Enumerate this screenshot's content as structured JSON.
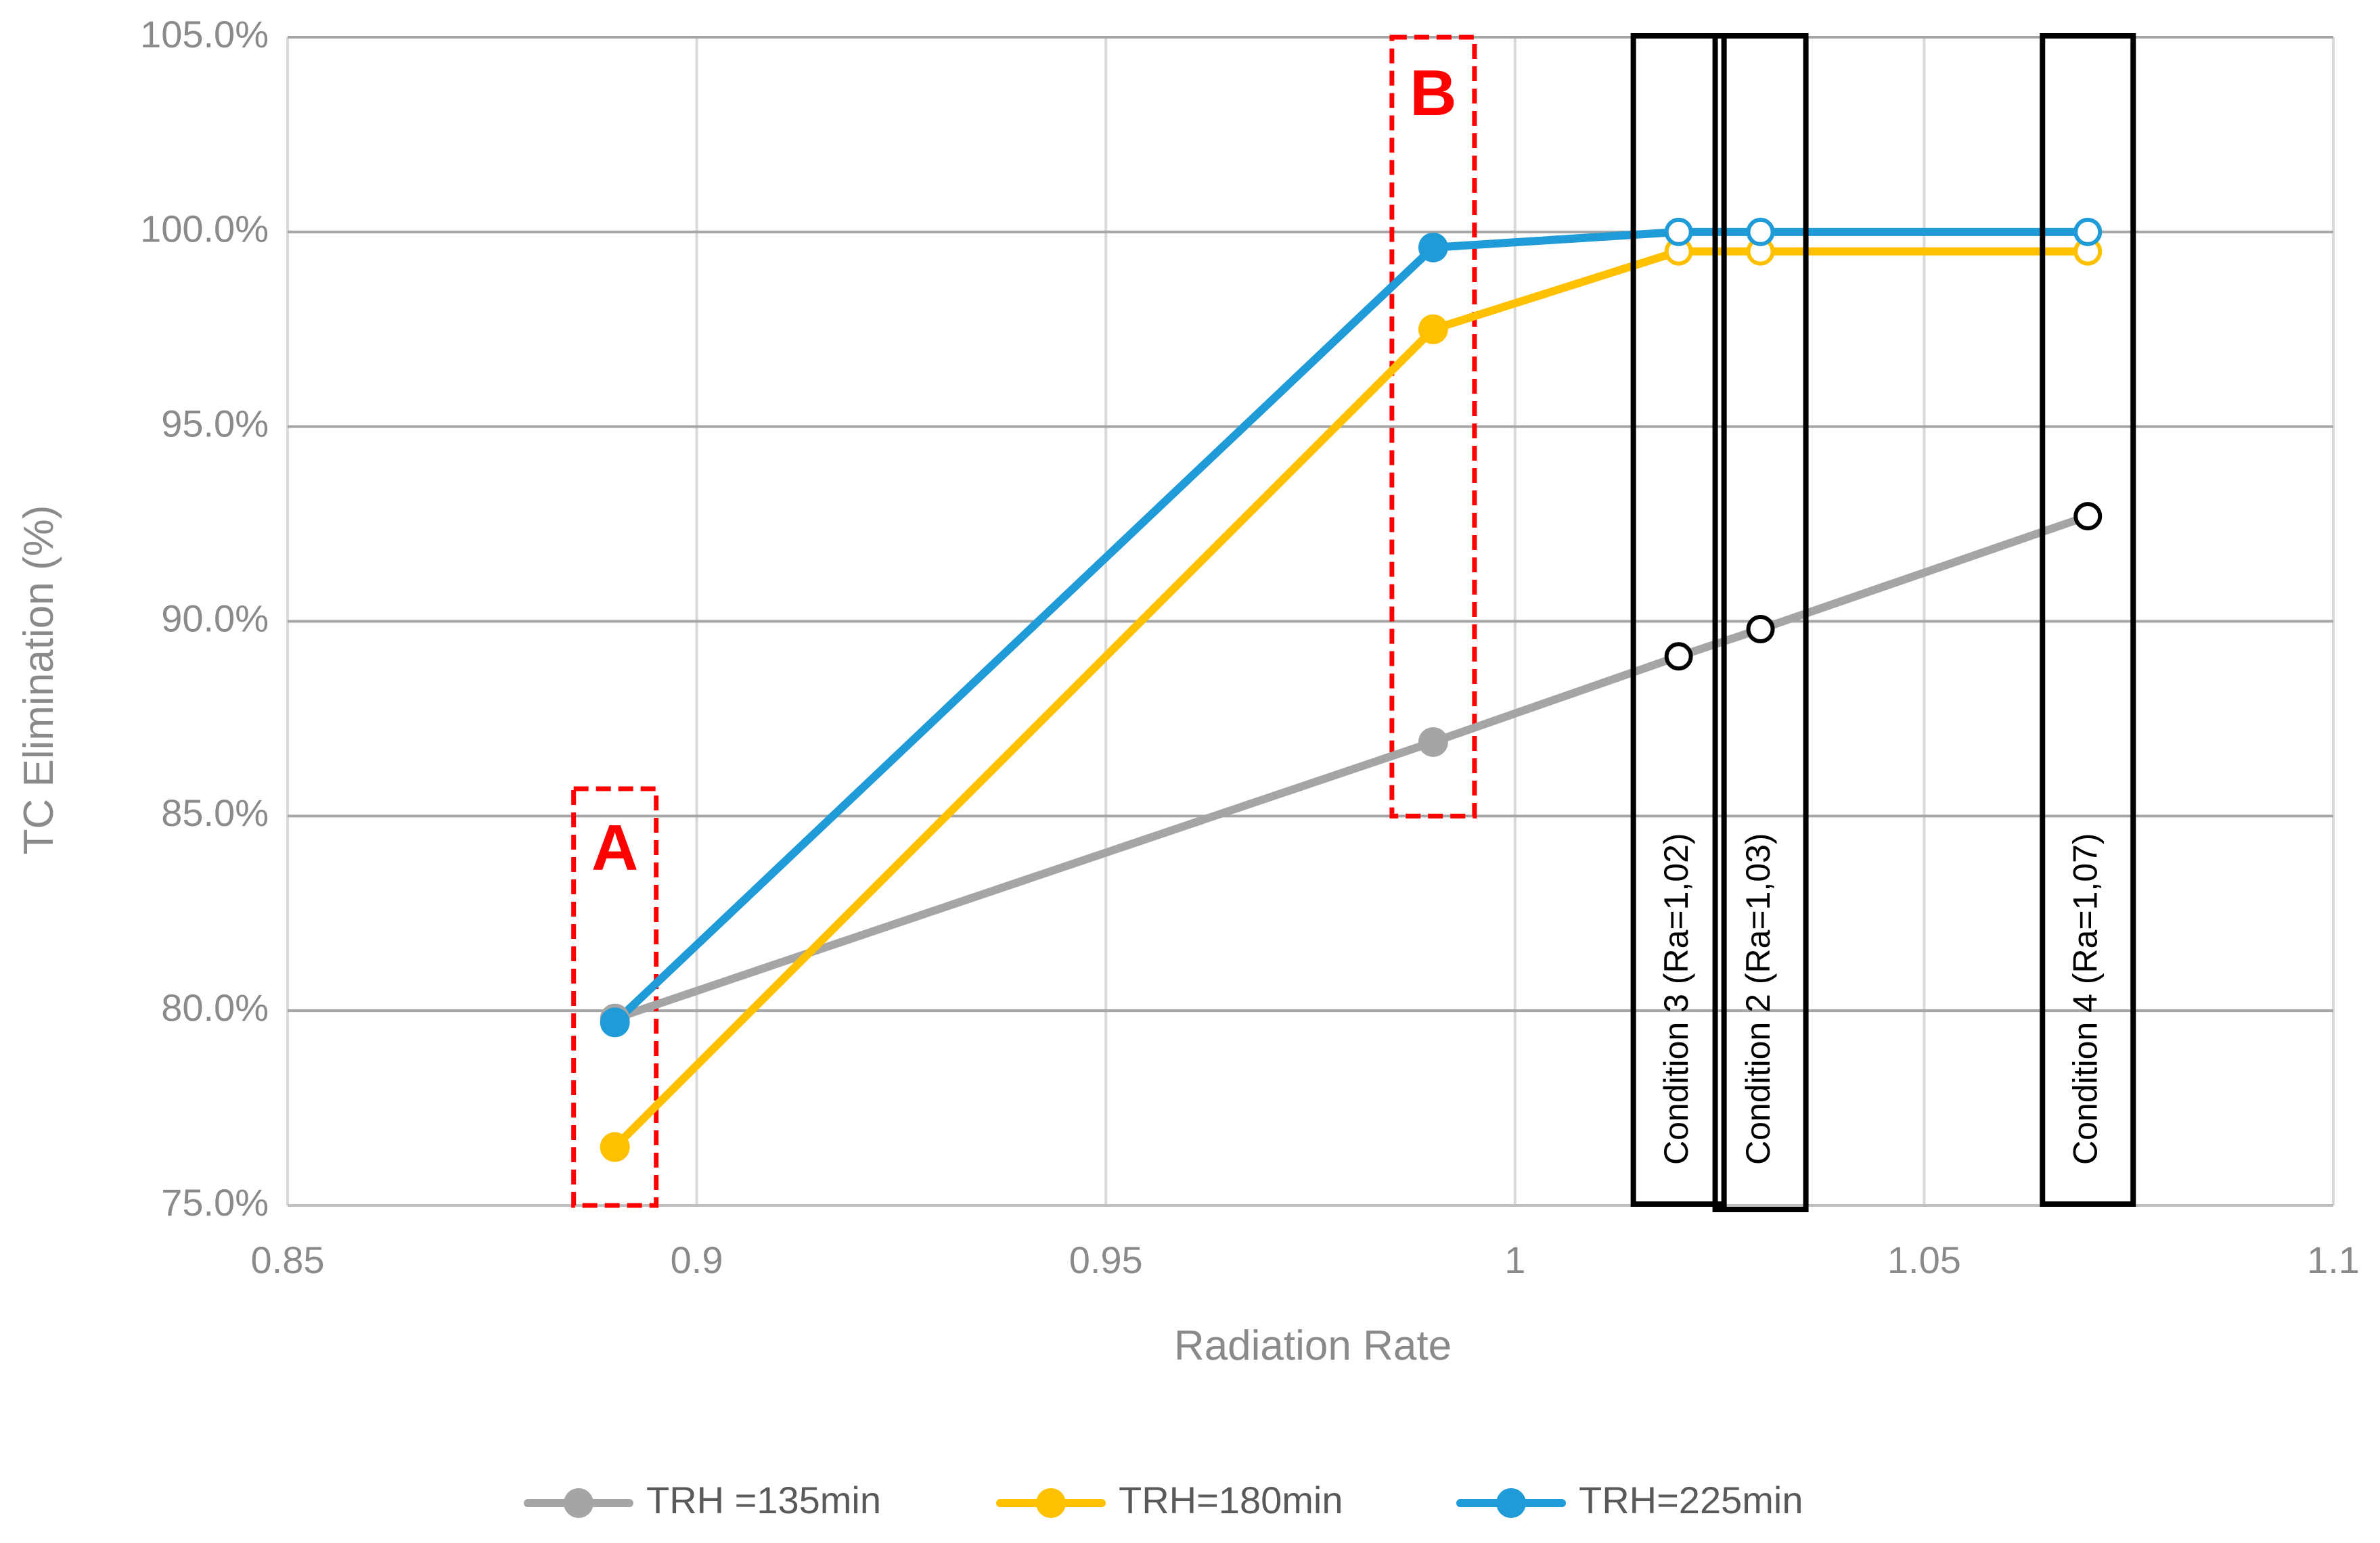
{
  "chart_data": {
    "type": "line",
    "title": "",
    "xlabel": "Radiation Rate",
    "ylabel": "TC Elimination (%)",
    "xlim": [
      0.85,
      1.1
    ],
    "ylim": [
      75,
      105
    ],
    "x_ticks": [
      0.85,
      0.9,
      0.95,
      1.0,
      1.05,
      1.1
    ],
    "x_tick_labels": [
      "0.85",
      "0.9",
      "0.95",
      "1",
      "1.05",
      "1.1"
    ],
    "y_ticks": [
      75,
      80,
      85,
      90,
      95,
      100,
      105
    ],
    "y_tick_labels": [
      "75.0%",
      "80.0%",
      "85.0%",
      "90.0%",
      "95.0%",
      "100.0%",
      "105.0%"
    ],
    "grid": true,
    "legend_position": "bottom",
    "x": [
      0.89,
      0.99,
      1.02,
      1.03,
      1.07
    ],
    "series": [
      {
        "name": "TRH =135min",
        "color": "#a5a5a5",
        "values": [
          79.8,
          86.9,
          89.1,
          89.8,
          92.7
        ],
        "hollow_from_index": 2
      },
      {
        "name": "TRH=180min",
        "color": "#ffc000",
        "values": [
          76.5,
          97.5,
          99.5,
          99.5,
          99.5
        ],
        "hollow_from_index": 2
      },
      {
        "name": "TRH=225min",
        "color": "#1f9bd7",
        "values": [
          79.7,
          99.6,
          100.0,
          100.0,
          100.0
        ],
        "hollow_from_index": 2
      }
    ],
    "annotations": {
      "regions": [
        {
          "label": "A",
          "x_center": 0.89,
          "y_from": 75,
          "y_to": 85.7,
          "style": "dashed",
          "color": "#ff0000"
        },
        {
          "label": "B",
          "x_center": 0.99,
          "y_from": 85,
          "y_to": 105,
          "style": "dashed",
          "color": "#ff0000"
        }
      ],
      "conditions": [
        {
          "label": "Condition 3 (Ra=1,02)",
          "x_center": 1.02
        },
        {
          "label": "Condition 2 (Ra=1,03)",
          "x_center": 1.03
        },
        {
          "label": "Condition 4 (Ra=1,07)",
          "x_center": 1.07
        }
      ]
    }
  }
}
